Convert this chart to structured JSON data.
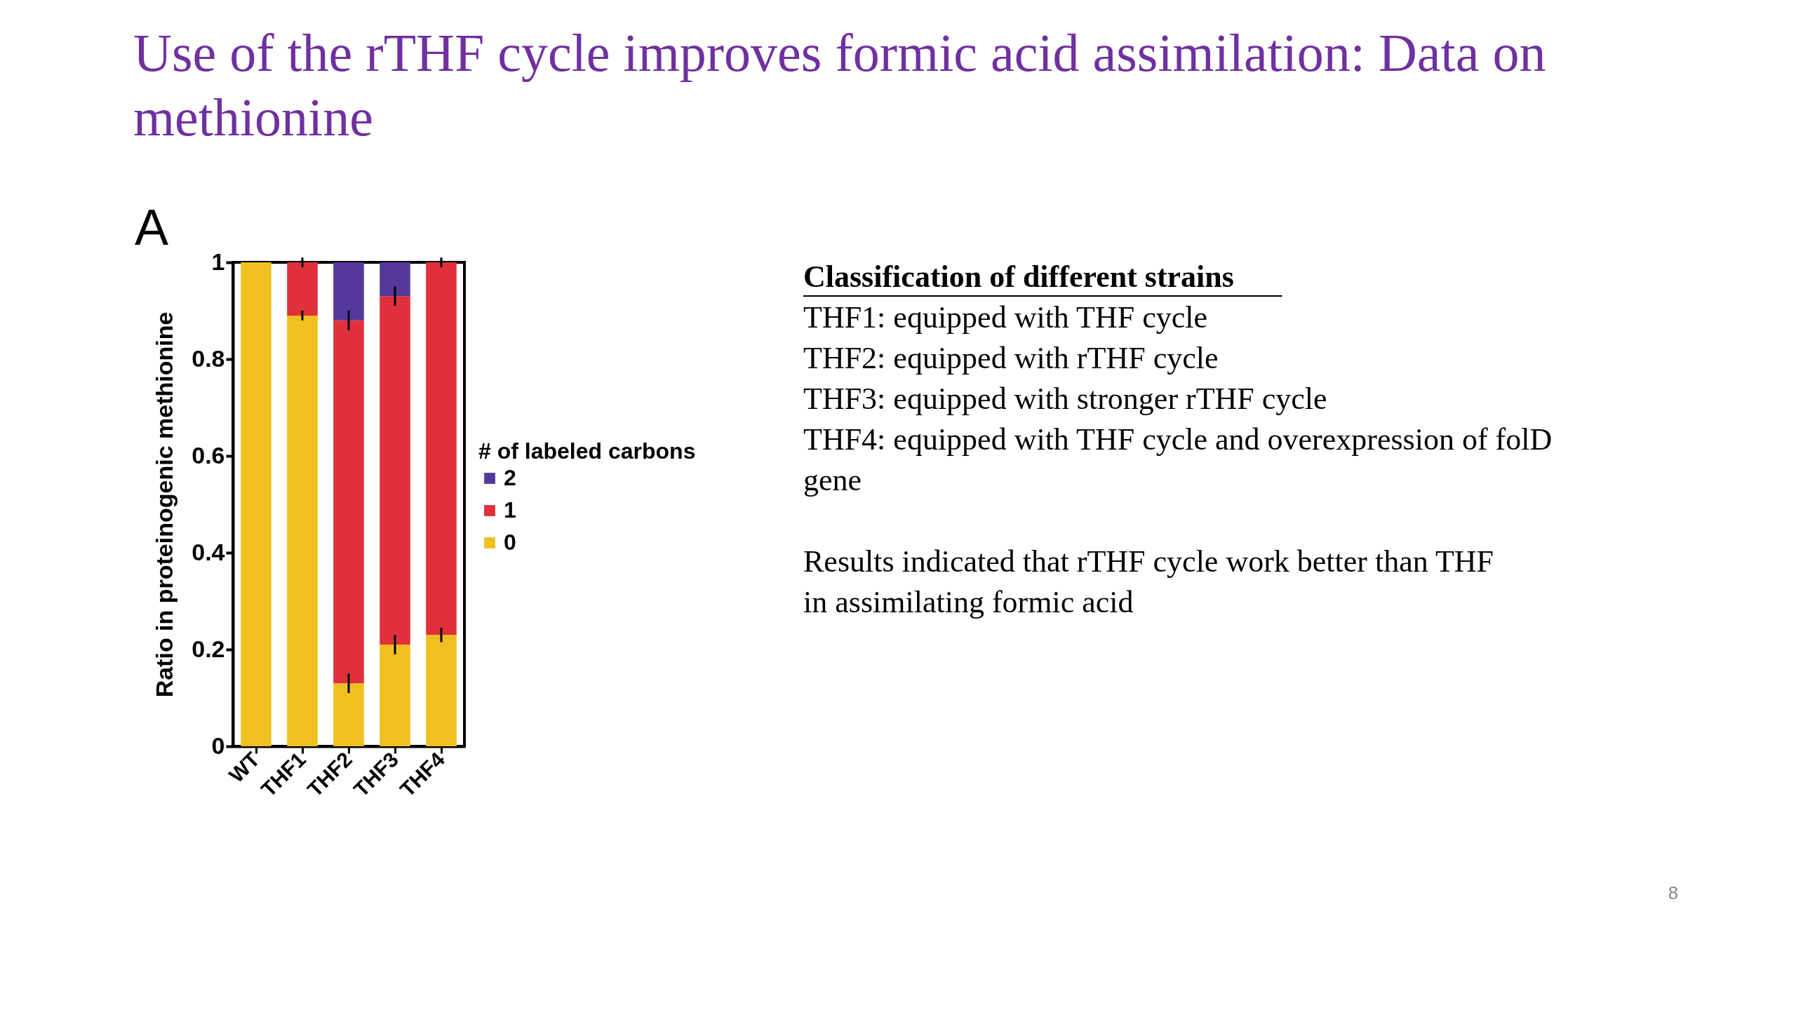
{
  "chart_data": [
    {
      "type": "bar",
      "title": "Use of the rTHF cycle improves formic acid assimilation: Data on methionine",
      "ylabel": "Ratio in proteinogenic methionine",
      "legend_title": "# of labeled carbons",
      "annotations": [
        "A"
      ],
      "categories": [
        "WT",
        "THF1",
        "THF2",
        "THF3",
        "THF4"
      ],
      "stacked": true,
      "legend": "right",
      "grid": false,
      "ylim": [
        0,
        1
      ],
      "yticks": [
        0,
        0.2,
        0.4,
        0.6,
        0.8,
        1
      ],
      "series": [
        {
          "name": "0",
          "color": "#f0c020",
          "values": [
            1.0,
            0.89,
            0.13,
            0.21,
            0.23
          ],
          "errors": [
            null,
            0.01,
            0.02,
            0.02,
            0.015
          ]
        },
        {
          "name": "1",
          "color": "#e0303c",
          "values": [
            0,
            0.11,
            0.75,
            0.72,
            0.77
          ],
          "errors": [
            null,
            0.01,
            0.02,
            0.02,
            0.01
          ]
        },
        {
          "name": "2",
          "color": "#55399a",
          "values": [
            0,
            0,
            0.12,
            0.07,
            0
          ]
        }
      ]
    },
    {
      "type": "other",
      "title": "Classification of different strains",
      "annotations": [
        "THF1: equipped with THF cycle",
        "THF2: equipped with rTHF cycle",
        "THF3: equipped with stronger rTHF cycle",
        "THF4: equipped with THF cycle and overexpression of folD gene",
        "Results indicated that rTHF cycle work better than THF in assimilating formic acid",
        "8"
      ]
    }
  ]
}
